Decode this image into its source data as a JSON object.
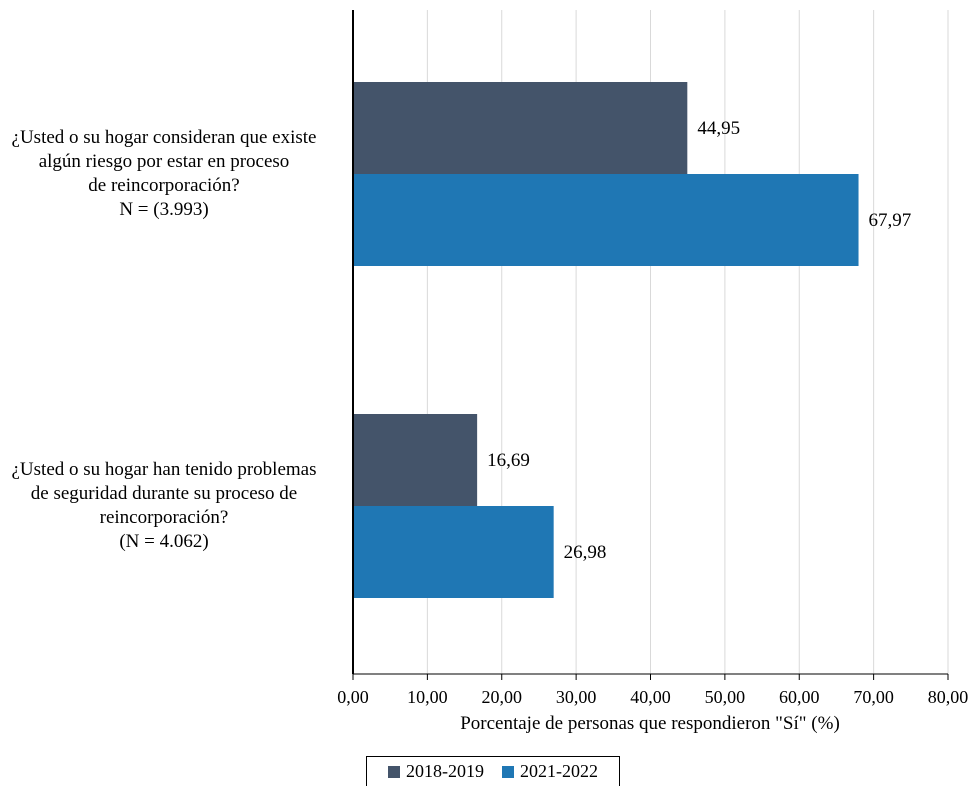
{
  "chart_data": {
    "type": "bar",
    "orientation": "horizontal",
    "categories": [
      "¿Usted o su hogar consideran que existe\nalgún riesgo por estar en proceso\nde reincorporación?\nN = (3.993)",
      "¿Usted o su hogar han tenido problemas\nde seguridad durante su proceso de\nreincorporación?\n(N = 4.062)"
    ],
    "series": [
      {
        "name": "2018-2019",
        "color": "#44546a",
        "values": [
          44.95,
          16.69
        ],
        "labels": [
          "44,95",
          "16,69"
        ]
      },
      {
        "name": "2021-2022",
        "color": "#1f77b4",
        "values": [
          67.97,
          26.98
        ],
        "labels": [
          "67,97",
          "26,98"
        ]
      }
    ],
    "xlabel": "Porcentaje de personas que respondieron \"Sí\" (%)",
    "xlim": [
      0,
      80
    ],
    "xticks": [
      "0,00",
      "10,00",
      "20,00",
      "30,00",
      "40,00",
      "50,00",
      "60,00",
      "70,00",
      "80,00"
    ],
    "grid": true,
    "legend_position": "bottom"
  }
}
